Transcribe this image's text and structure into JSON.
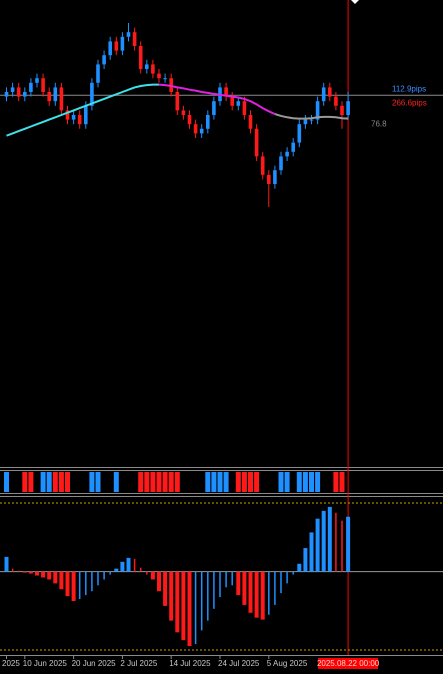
{
  "chart_data": {
    "type": "candlestick",
    "x": [
      "2025",
      null,
      null,
      "10 Jun 2025",
      null,
      null,
      null,
      null,
      null,
      null,
      null,
      "20 Jun 2025",
      null,
      null,
      null,
      null,
      null,
      null,
      null,
      "2 Jul 2025",
      null,
      null,
      null,
      null,
      null,
      null,
      null,
      "14 Jul 2025",
      null,
      null,
      null,
      null,
      null,
      null,
      null,
      "24 Jul 2025",
      null,
      null,
      null,
      null,
      null,
      null,
      null,
      "5 Aug 2025",
      null,
      null,
      null,
      null,
      null,
      null,
      null,
      null,
      null,
      null,
      null,
      null,
      "2025.08.22 00:00"
    ],
    "open": [
      79,
      80,
      81,
      79,
      80,
      82,
      83,
      80,
      78,
      81,
      76,
      74,
      75,
      73,
      77,
      82,
      86,
      88,
      91,
      89,
      92,
      93,
      90,
      85,
      86,
      84,
      83,
      83,
      80,
      76,
      75,
      73,
      71,
      72,
      75,
      78,
      81,
      79,
      77,
      78,
      75,
      72,
      66,
      62,
      60,
      63,
      66,
      67,
      69,
      73,
      74,
      74,
      78,
      81,
      79,
      77,
      75
    ],
    "high": [
      81,
      82,
      82,
      81,
      83,
      84,
      84,
      81,
      82,
      82,
      77,
      76,
      76,
      78,
      83,
      87,
      89,
      92,
      92,
      93,
      95,
      94,
      91,
      87,
      87,
      85,
      84,
      84,
      81,
      77,
      76,
      74,
      73,
      76,
      79,
      82,
      82,
      80,
      79,
      79,
      76,
      73,
      67,
      63,
      64,
      67,
      68,
      70,
      74,
      75,
      75,
      79,
      82,
      82,
      80,
      78,
      80
    ],
    "low": [
      78,
      79,
      78,
      78,
      79,
      81,
      79,
      77,
      77,
      75,
      73,
      73,
      72,
      72,
      76,
      81,
      85,
      87,
      88,
      88,
      91,
      89,
      84,
      84,
      83,
      82,
      82,
      79,
      75,
      74,
      72,
      70,
      70,
      71,
      74,
      77,
      78,
      76,
      76,
      74,
      71,
      65,
      61,
      55,
      59,
      62,
      65,
      66,
      68,
      72,
      73,
      73,
      77,
      78,
      76,
      72,
      74
    ],
    "close": [
      80,
      81,
      79,
      80,
      82,
      83,
      80,
      78,
      81,
      76,
      74,
      75,
      73,
      77,
      82,
      86,
      88,
      91,
      89,
      92,
      93,
      90,
      85,
      86,
      84,
      83,
      83,
      80,
      76,
      75,
      73,
      71,
      72,
      75,
      78,
      81,
      79,
      77,
      78,
      75,
      72,
      66,
      62,
      60,
      63,
      66,
      67,
      69,
      73,
      74,
      74,
      78,
      81,
      79,
      77,
      75,
      78
    ],
    "up_color": "#1e90ff",
    "down_color": "#ff1a1a",
    "ylim": [
      0,
      100
    ],
    "ma_series": [
      {
        "color": "#40e0e8",
        "values": [
          70.5,
          71,
          71.5,
          72,
          72.5,
          73,
          73.5,
          74,
          74.5,
          75,
          75.5,
          76,
          76.5,
          77,
          77.5,
          78,
          78.5,
          79,
          79.5,
          80,
          80.5,
          81,
          81.3,
          81.5,
          81.6,
          81.6,
          null,
          null,
          null,
          null,
          null,
          null,
          null,
          null,
          null,
          null,
          null,
          null,
          null,
          null,
          null,
          null,
          null,
          null,
          null,
          null,
          null,
          null,
          null,
          null,
          null,
          null,
          null,
          null,
          null,
          null,
          null
        ]
      },
      {
        "color": "#e020e0",
        "values": [
          null,
          null,
          null,
          null,
          null,
          null,
          null,
          null,
          null,
          null,
          null,
          null,
          null,
          null,
          null,
          null,
          null,
          null,
          null,
          null,
          null,
          null,
          null,
          null,
          null,
          81.6,
          81.5,
          81.3,
          81,
          80.8,
          80.5,
          80.3,
          80,
          79.8,
          79.6,
          79.4,
          79.2,
          79,
          78.8,
          78.5,
          78,
          77.3,
          76.5,
          75.8,
          75.2,
          null,
          null,
          null,
          null,
          null,
          null,
          null,
          null,
          null,
          null,
          null,
          null
        ]
      },
      {
        "color": "#9a9a9a",
        "values": [
          null,
          null,
          null,
          null,
          null,
          null,
          null,
          null,
          null,
          null,
          null,
          null,
          null,
          null,
          null,
          null,
          null,
          null,
          null,
          null,
          null,
          null,
          null,
          null,
          null,
          null,
          null,
          null,
          null,
          null,
          null,
          null,
          null,
          null,
          null,
          null,
          null,
          null,
          null,
          null,
          null,
          null,
          null,
          null,
          75.2,
          74.8,
          74.5,
          74.3,
          74.2,
          74.2,
          74.3,
          74.5,
          74.6,
          74.6,
          74.5,
          74.3,
          74.2
        ]
      }
    ],
    "level": {
      "value": 79.3,
      "label": "112.9pips",
      "color": "#3d8eff"
    },
    "annotations": [
      {
        "text": "266.6pips",
        "color": "#ff2222"
      },
      {
        "text": "76.8",
        "color": "#8a8a8a"
      }
    ],
    "cursor_color": "#ff0000",
    "signals": [
      1,
      0,
      0,
      -1,
      -1,
      0,
      1,
      1,
      -1,
      -1,
      -1,
      0,
      0,
      0,
      1,
      1,
      0,
      0,
      1,
      0,
      0,
      0,
      -1,
      -1,
      -1,
      -1,
      -1,
      -1,
      -1,
      0,
      0,
      0,
      0,
      1,
      1,
      1,
      1,
      0,
      -1,
      -1,
      -1,
      -1,
      0,
      0,
      0,
      1,
      1,
      0,
      1,
      1,
      1,
      1,
      0,
      0,
      -1,
      -1,
      0
    ],
    "histogram": {
      "values": [
        15,
        3,
        1,
        -1,
        -2,
        -4,
        -6,
        -8,
        -12,
        -18,
        -25,
        -30,
        -28,
        -24,
        -20,
        -14,
        -8,
        -3,
        3,
        10,
        14,
        13,
        4,
        -3,
        -8,
        -20,
        -35,
        -50,
        -62,
        -70,
        -76,
        -74,
        -60,
        -50,
        -38,
        -26,
        -16,
        -14,
        -24,
        -34,
        -42,
        -47,
        -49,
        -44,
        -34,
        -22,
        -12,
        -3,
        8,
        24,
        40,
        54,
        62,
        66,
        60,
        52,
        56
      ],
      "ylim": [
        -80,
        70
      ]
    }
  }
}
